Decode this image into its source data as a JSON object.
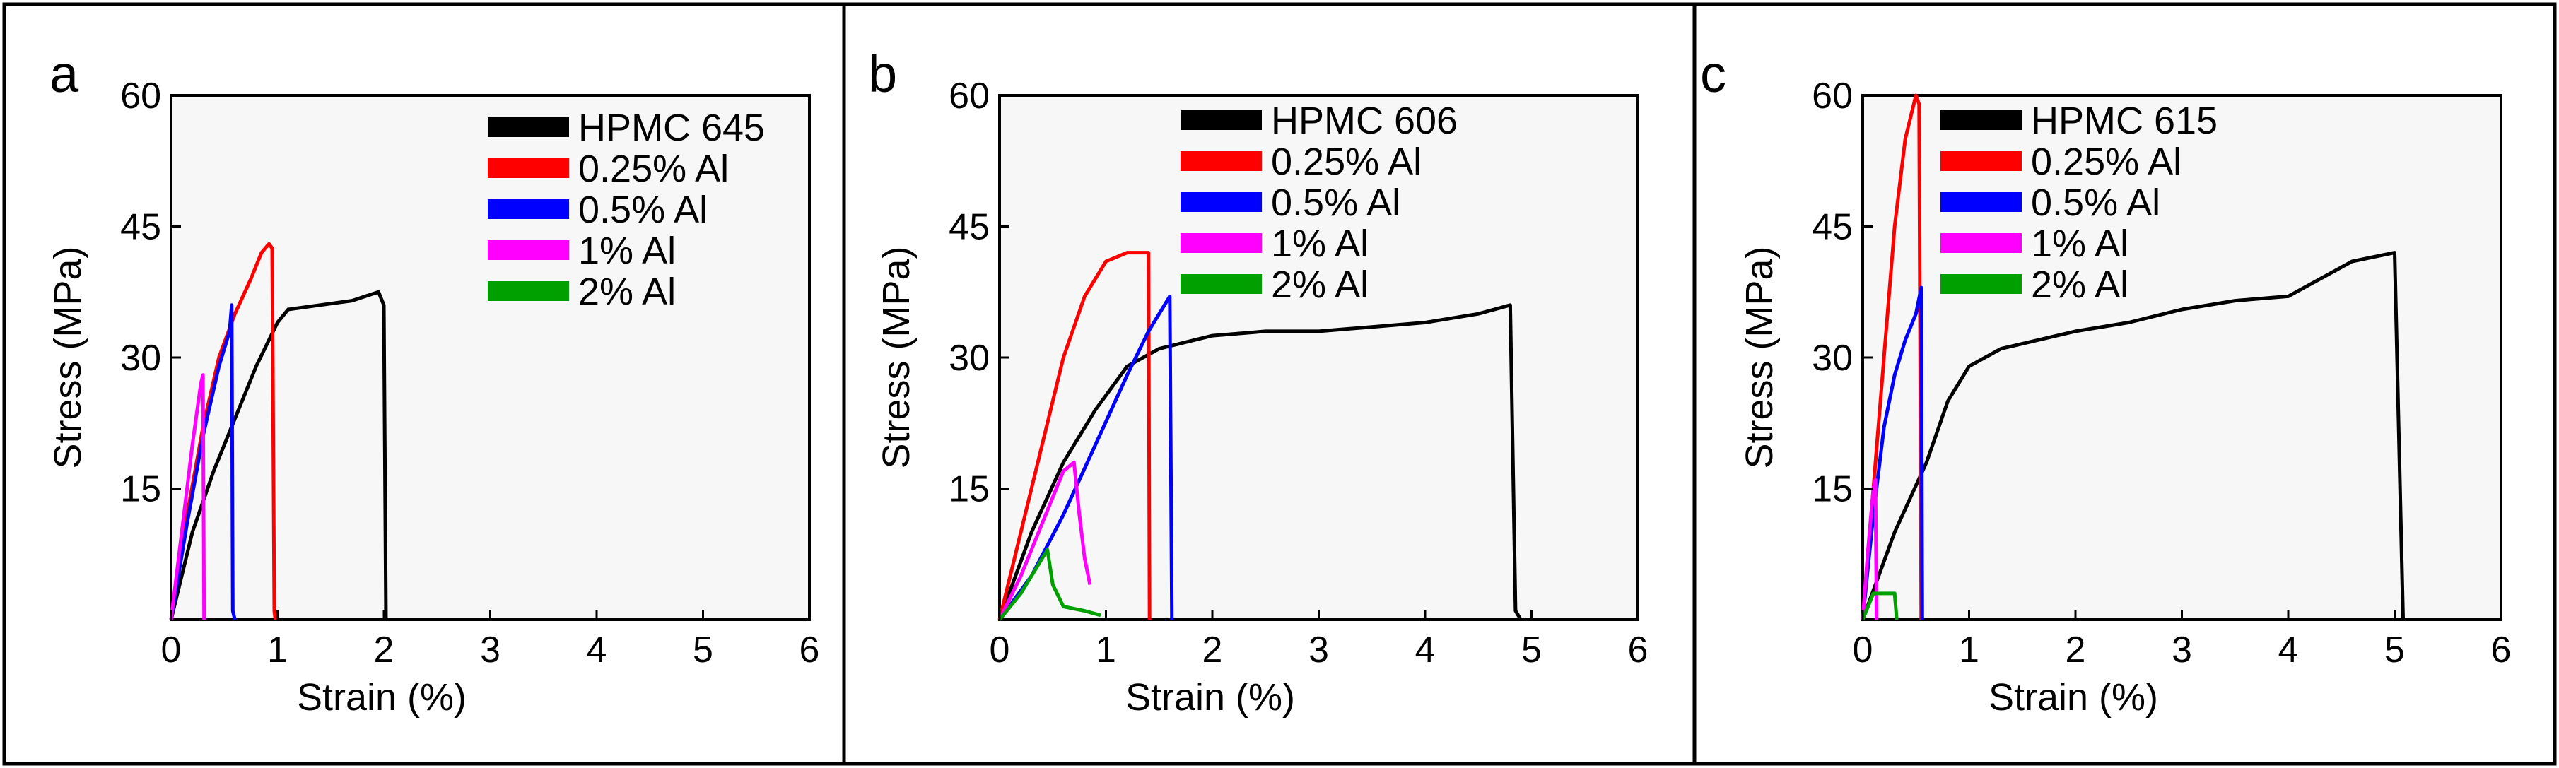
{
  "chart_data": [
    {
      "type": "line",
      "panel": "a",
      "xlabel": "Strain (%)",
      "ylabel": "Stress (MPa)",
      "xlim": [
        0,
        6
      ],
      "ylim": [
        0,
        60
      ],
      "xticks": [
        "0",
        "1",
        "2",
        "3",
        "4",
        "5",
        "6"
      ],
      "yticks": [
        "15",
        "30",
        "45",
        "60"
      ],
      "legend_position": "top-right",
      "series": [
        {
          "name": "HPMC 645",
          "color": "#000000",
          "points": [
            [
              0,
              0
            ],
            [
              0.2,
              10
            ],
            [
              0.4,
              17
            ],
            [
              0.6,
              23
            ],
            [
              0.8,
              29
            ],
            [
              1.0,
              34
            ],
            [
              1.1,
              35.5
            ],
            [
              1.4,
              36
            ],
            [
              1.7,
              36.5
            ],
            [
              1.95,
              37.5
            ],
            [
              2.0,
              36
            ],
            [
              2.02,
              0
            ]
          ]
        },
        {
          "name": "0.25% Al",
          "color": "#ff0000",
          "points": [
            [
              0,
              0
            ],
            [
              0.15,
              12
            ],
            [
              0.3,
              22
            ],
            [
              0.45,
              30
            ],
            [
              0.6,
              35
            ],
            [
              0.75,
              39
            ],
            [
              0.85,
              42
            ],
            [
              0.92,
              43
            ],
            [
              0.95,
              42.5
            ],
            [
              0.97,
              1
            ],
            [
              0.98,
              0
            ]
          ]
        },
        {
          "name": "0.5% Al",
          "color": "#0000ff",
          "points": [
            [
              0,
              0
            ],
            [
              0.15,
              11
            ],
            [
              0.3,
              21
            ],
            [
              0.45,
              29
            ],
            [
              0.55,
              33
            ],
            [
              0.57,
              36
            ],
            [
              0.58,
              1
            ],
            [
              0.6,
              0
            ]
          ]
        },
        {
          "name": "1% Al",
          "color": "#ff00ff",
          "points": [
            [
              0,
              0
            ],
            [
              0.1,
              10
            ],
            [
              0.2,
              20
            ],
            [
              0.28,
              27
            ],
            [
              0.3,
              28
            ],
            [
              0.31,
              0
            ]
          ]
        },
        {
          "name": "2% Al",
          "color": "#00a000",
          "points": []
        }
      ]
    },
    {
      "type": "line",
      "panel": "b",
      "xlabel": "Strain (%)",
      "ylabel": "Stress (MPa)",
      "xlim": [
        0,
        6
      ],
      "ylim": [
        0,
        60
      ],
      "xticks": [
        "0",
        "1",
        "2",
        "3",
        "4",
        "5",
        "6"
      ],
      "yticks": [
        "15",
        "30",
        "45",
        "60"
      ],
      "legend_position": "top-right",
      "series": [
        {
          "name": "HPMC 606",
          "color": "#000000",
          "points": [
            [
              0,
              0
            ],
            [
              0.3,
              10
            ],
            [
              0.6,
              18
            ],
            [
              0.9,
              24
            ],
            [
              1.2,
              29
            ],
            [
              1.5,
              31
            ],
            [
              2.0,
              32.5
            ],
            [
              2.5,
              33
            ],
            [
              3.0,
              33
            ],
            [
              3.5,
              33.5
            ],
            [
              4.0,
              34
            ],
            [
              4.5,
              35
            ],
            [
              4.8,
              36
            ],
            [
              4.85,
              1
            ],
            [
              4.9,
              0
            ]
          ]
        },
        {
          "name": "0.25% Al",
          "color": "#ff0000",
          "points": [
            [
              0,
              0
            ],
            [
              0.2,
              10
            ],
            [
              0.4,
              20
            ],
            [
              0.6,
              30
            ],
            [
              0.8,
              37
            ],
            [
              1.0,
              41
            ],
            [
              1.2,
              42
            ],
            [
              1.4,
              42
            ],
            [
              1.41,
              0
            ]
          ]
        },
        {
          "name": "0.5% Al",
          "color": "#0000ff",
          "points": [
            [
              0,
              0
            ],
            [
              0.3,
              5
            ],
            [
              0.6,
              12
            ],
            [
              0.9,
              20
            ],
            [
              1.2,
              28
            ],
            [
              1.4,
              33
            ],
            [
              1.6,
              37
            ],
            [
              1.62,
              0
            ]
          ]
        },
        {
          "name": "1% Al",
          "color": "#ff00ff",
          "points": [
            [
              0,
              0
            ],
            [
              0.2,
              5
            ],
            [
              0.4,
              11
            ],
            [
              0.6,
              17
            ],
            [
              0.7,
              18
            ],
            [
              0.75,
              12
            ],
            [
              0.8,
              7
            ],
            [
              0.85,
              4
            ]
          ]
        },
        {
          "name": "2% Al",
          "color": "#00a000",
          "points": [
            [
              0,
              0
            ],
            [
              0.2,
              3
            ],
            [
              0.4,
              7
            ],
            [
              0.45,
              8
            ],
            [
              0.5,
              4
            ],
            [
              0.6,
              1.5
            ],
            [
              0.8,
              1
            ],
            [
              0.95,
              0.5
            ]
          ]
        }
      ]
    },
    {
      "type": "line",
      "panel": "c",
      "xlabel": "Strain (%)",
      "ylabel": "Stress (MPa)",
      "xlim": [
        0,
        6
      ],
      "ylim": [
        0,
        60
      ],
      "xticks": [
        "0",
        "1",
        "2",
        "3",
        "4",
        "5",
        "6"
      ],
      "yticks": [
        "15",
        "30",
        "45",
        "60"
      ],
      "legend_position": "top-right",
      "series": [
        {
          "name": "HPMC 615",
          "color": "#000000",
          "points": [
            [
              0,
              0
            ],
            [
              0.3,
              10
            ],
            [
              0.6,
              18
            ],
            [
              0.8,
              25
            ],
            [
              1.0,
              29
            ],
            [
              1.3,
              31
            ],
            [
              2.0,
              33
            ],
            [
              2.5,
              34
            ],
            [
              3.0,
              35.5
            ],
            [
              3.5,
              36.5
            ],
            [
              4.0,
              37
            ],
            [
              4.3,
              39
            ],
            [
              4.6,
              41
            ],
            [
              5.0,
              42
            ],
            [
              5.08,
              0
            ]
          ]
        },
        {
          "name": "0.25% Al",
          "color": "#ff0000",
          "points": [
            [
              0,
              0
            ],
            [
              0.1,
              15
            ],
            [
              0.2,
              30
            ],
            [
              0.3,
              45
            ],
            [
              0.4,
              55
            ],
            [
              0.5,
              60
            ],
            [
              0.53,
              59
            ],
            [
              0.55,
              0
            ]
          ]
        },
        {
          "name": "0.5% Al",
          "color": "#0000ff",
          "points": [
            [
              0,
              0
            ],
            [
              0.1,
              12
            ],
            [
              0.2,
              22
            ],
            [
              0.3,
              28
            ],
            [
              0.4,
              32
            ],
            [
              0.5,
              35
            ],
            [
              0.55,
              38
            ],
            [
              0.56,
              0
            ]
          ]
        },
        {
          "name": "1% Al",
          "color": "#ff00ff",
          "points": [
            [
              0,
              0
            ],
            [
              0.05,
              8
            ],
            [
              0.1,
              15
            ],
            [
              0.12,
              16
            ],
            [
              0.13,
              0
            ]
          ]
        },
        {
          "name": "2% Al",
          "color": "#00a000",
          "points": [
            [
              0,
              0
            ],
            [
              0.1,
              3
            ],
            [
              0.3,
              3
            ],
            [
              0.32,
              0
            ]
          ]
        }
      ]
    }
  ]
}
